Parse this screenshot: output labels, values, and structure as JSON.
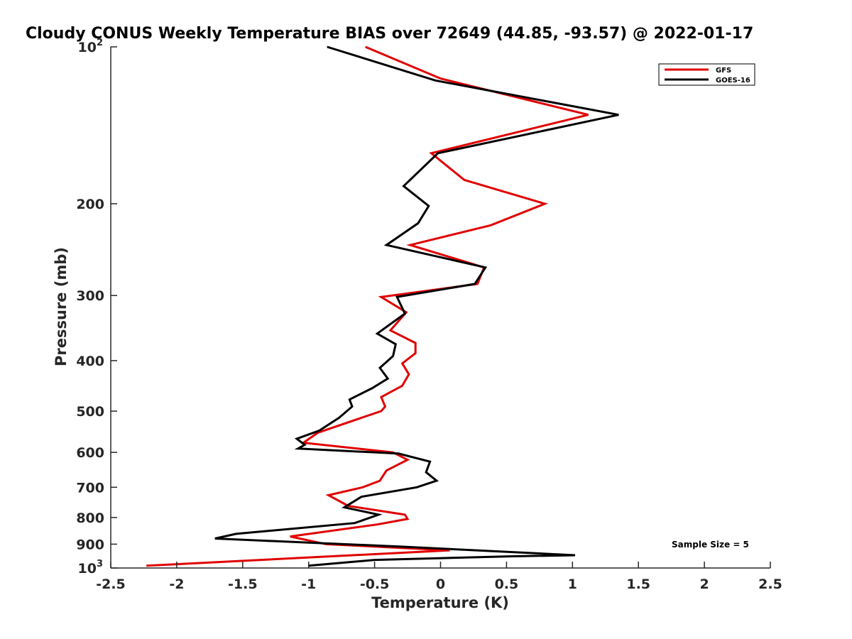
{
  "chart_data": {
    "type": "line",
    "title": "Cloudy CONUS Weekly Temperature BIAS over 72649 (44.85, -93.57) @ 2022-01-17",
    "xlabel": "Temperature (K)",
    "ylabel": "Pressure (mb)",
    "xlim": [
      -2.5,
      2.5
    ],
    "ylim": [
      100,
      1000
    ],
    "y_scale": "log",
    "y_reversed": true,
    "grid": false,
    "legend_position": "top-right",
    "x_ticks": [
      {
        "value": -2.5,
        "label": "-2.5"
      },
      {
        "value": -2,
        "label": "-2"
      },
      {
        "value": -1.5,
        "label": "-1.5"
      },
      {
        "value": -1,
        "label": "-1"
      },
      {
        "value": -0.5,
        "label": "-0.5"
      },
      {
        "value": 0,
        "label": "0"
      },
      {
        "value": 0.5,
        "label": "0.5"
      },
      {
        "value": 1,
        "label": "1"
      },
      {
        "value": 1.5,
        "label": "1.5"
      },
      {
        "value": 2,
        "label": "2"
      },
      {
        "value": 2.5,
        "label": "2.5"
      }
    ],
    "y_ticks": [
      {
        "value": 100,
        "label": "10",
        "sup": "2"
      },
      {
        "value": 200,
        "label": "200",
        "sup": ""
      },
      {
        "value": 300,
        "label": "300",
        "sup": ""
      },
      {
        "value": 400,
        "label": "400",
        "sup": ""
      },
      {
        "value": 500,
        "label": "500",
        "sup": ""
      },
      {
        "value": 600,
        "label": "600",
        "sup": ""
      },
      {
        "value": 700,
        "label": "700",
        "sup": ""
      },
      {
        "value": 800,
        "label": "800",
        "sup": ""
      },
      {
        "value": 900,
        "label": "900",
        "sup": ""
      },
      {
        "value": 1000,
        "label": "10",
        "sup": "3"
      }
    ],
    "annotation": "Sample Size = 5",
    "series": [
      {
        "name": "GFS",
        "color": "#e00000",
        "points": [
          {
            "x": -0.57,
            "y": 100
          },
          {
            "x": 0.0,
            "y": 115
          },
          {
            "x": 1.12,
            "y": 135
          },
          {
            "x": -0.07,
            "y": 160
          },
          {
            "x": 0.18,
            "y": 180
          },
          {
            "x": 0.79,
            "y": 200
          },
          {
            "x": 0.38,
            "y": 220
          },
          {
            "x": -0.23,
            "y": 240
          },
          {
            "x": 0.33,
            "y": 265
          },
          {
            "x": 0.28,
            "y": 285
          },
          {
            "x": -0.45,
            "y": 302
          },
          {
            "x": -0.26,
            "y": 323
          },
          {
            "x": -0.38,
            "y": 350
          },
          {
            "x": -0.19,
            "y": 370
          },
          {
            "x": -0.19,
            "y": 387
          },
          {
            "x": -0.29,
            "y": 405
          },
          {
            "x": -0.24,
            "y": 425
          },
          {
            "x": -0.29,
            "y": 447
          },
          {
            "x": -0.45,
            "y": 470
          },
          {
            "x": -0.42,
            "y": 490
          },
          {
            "x": -0.45,
            "y": 500
          },
          {
            "x": -0.93,
            "y": 550
          },
          {
            "x": -1.04,
            "y": 575
          },
          {
            "x": -0.36,
            "y": 600
          },
          {
            "x": -0.25,
            "y": 620
          },
          {
            "x": -0.41,
            "y": 650
          },
          {
            "x": -0.46,
            "y": 680
          },
          {
            "x": -0.59,
            "y": 700
          },
          {
            "x": -0.85,
            "y": 725
          },
          {
            "x": -0.7,
            "y": 760
          },
          {
            "x": -0.27,
            "y": 790
          },
          {
            "x": -0.25,
            "y": 805
          },
          {
            "x": -0.48,
            "y": 825
          },
          {
            "x": -1.14,
            "y": 870
          },
          {
            "x": -0.87,
            "y": 900
          },
          {
            "x": 0.07,
            "y": 925
          },
          {
            "x": -2.23,
            "y": 990
          }
        ]
      },
      {
        "name": "GOES-16",
        "color": "#000000",
        "points": [
          {
            "x": -0.86,
            "y": 100
          },
          {
            "x": -0.04,
            "y": 116
          },
          {
            "x": 1.35,
            "y": 135
          },
          {
            "x": -0.02,
            "y": 160
          },
          {
            "x": -0.28,
            "y": 185
          },
          {
            "x": -0.09,
            "y": 202
          },
          {
            "x": -0.17,
            "y": 218
          },
          {
            "x": -0.41,
            "y": 240
          },
          {
            "x": 0.34,
            "y": 265
          },
          {
            "x": 0.26,
            "y": 285
          },
          {
            "x": -0.33,
            "y": 302
          },
          {
            "x": -0.27,
            "y": 325
          },
          {
            "x": -0.48,
            "y": 355
          },
          {
            "x": -0.34,
            "y": 372
          },
          {
            "x": -0.36,
            "y": 392
          },
          {
            "x": -0.46,
            "y": 413
          },
          {
            "x": -0.4,
            "y": 433
          },
          {
            "x": -0.52,
            "y": 452
          },
          {
            "x": -0.69,
            "y": 475
          },
          {
            "x": -0.67,
            "y": 490
          },
          {
            "x": -0.77,
            "y": 515
          },
          {
            "x": -0.92,
            "y": 545
          },
          {
            "x": -1.09,
            "y": 565
          },
          {
            "x": -1.03,
            "y": 580
          },
          {
            "x": -1.08,
            "y": 590
          },
          {
            "x": -0.32,
            "y": 603
          },
          {
            "x": -0.08,
            "y": 625
          },
          {
            "x": -0.11,
            "y": 655
          },
          {
            "x": -0.03,
            "y": 680
          },
          {
            "x": -0.18,
            "y": 700
          },
          {
            "x": -0.6,
            "y": 730
          },
          {
            "x": -0.73,
            "y": 765
          },
          {
            "x": -0.47,
            "y": 790
          },
          {
            "x": -0.65,
            "y": 820
          },
          {
            "x": -1.55,
            "y": 860
          },
          {
            "x": -1.71,
            "y": 878
          },
          {
            "x": -0.3,
            "y": 910
          },
          {
            "x": 1.02,
            "y": 945
          },
          {
            "x": 0.52,
            "y": 950
          },
          {
            "x": -0.5,
            "y": 965
          },
          {
            "x": -1.0,
            "y": 990
          }
        ]
      }
    ]
  }
}
